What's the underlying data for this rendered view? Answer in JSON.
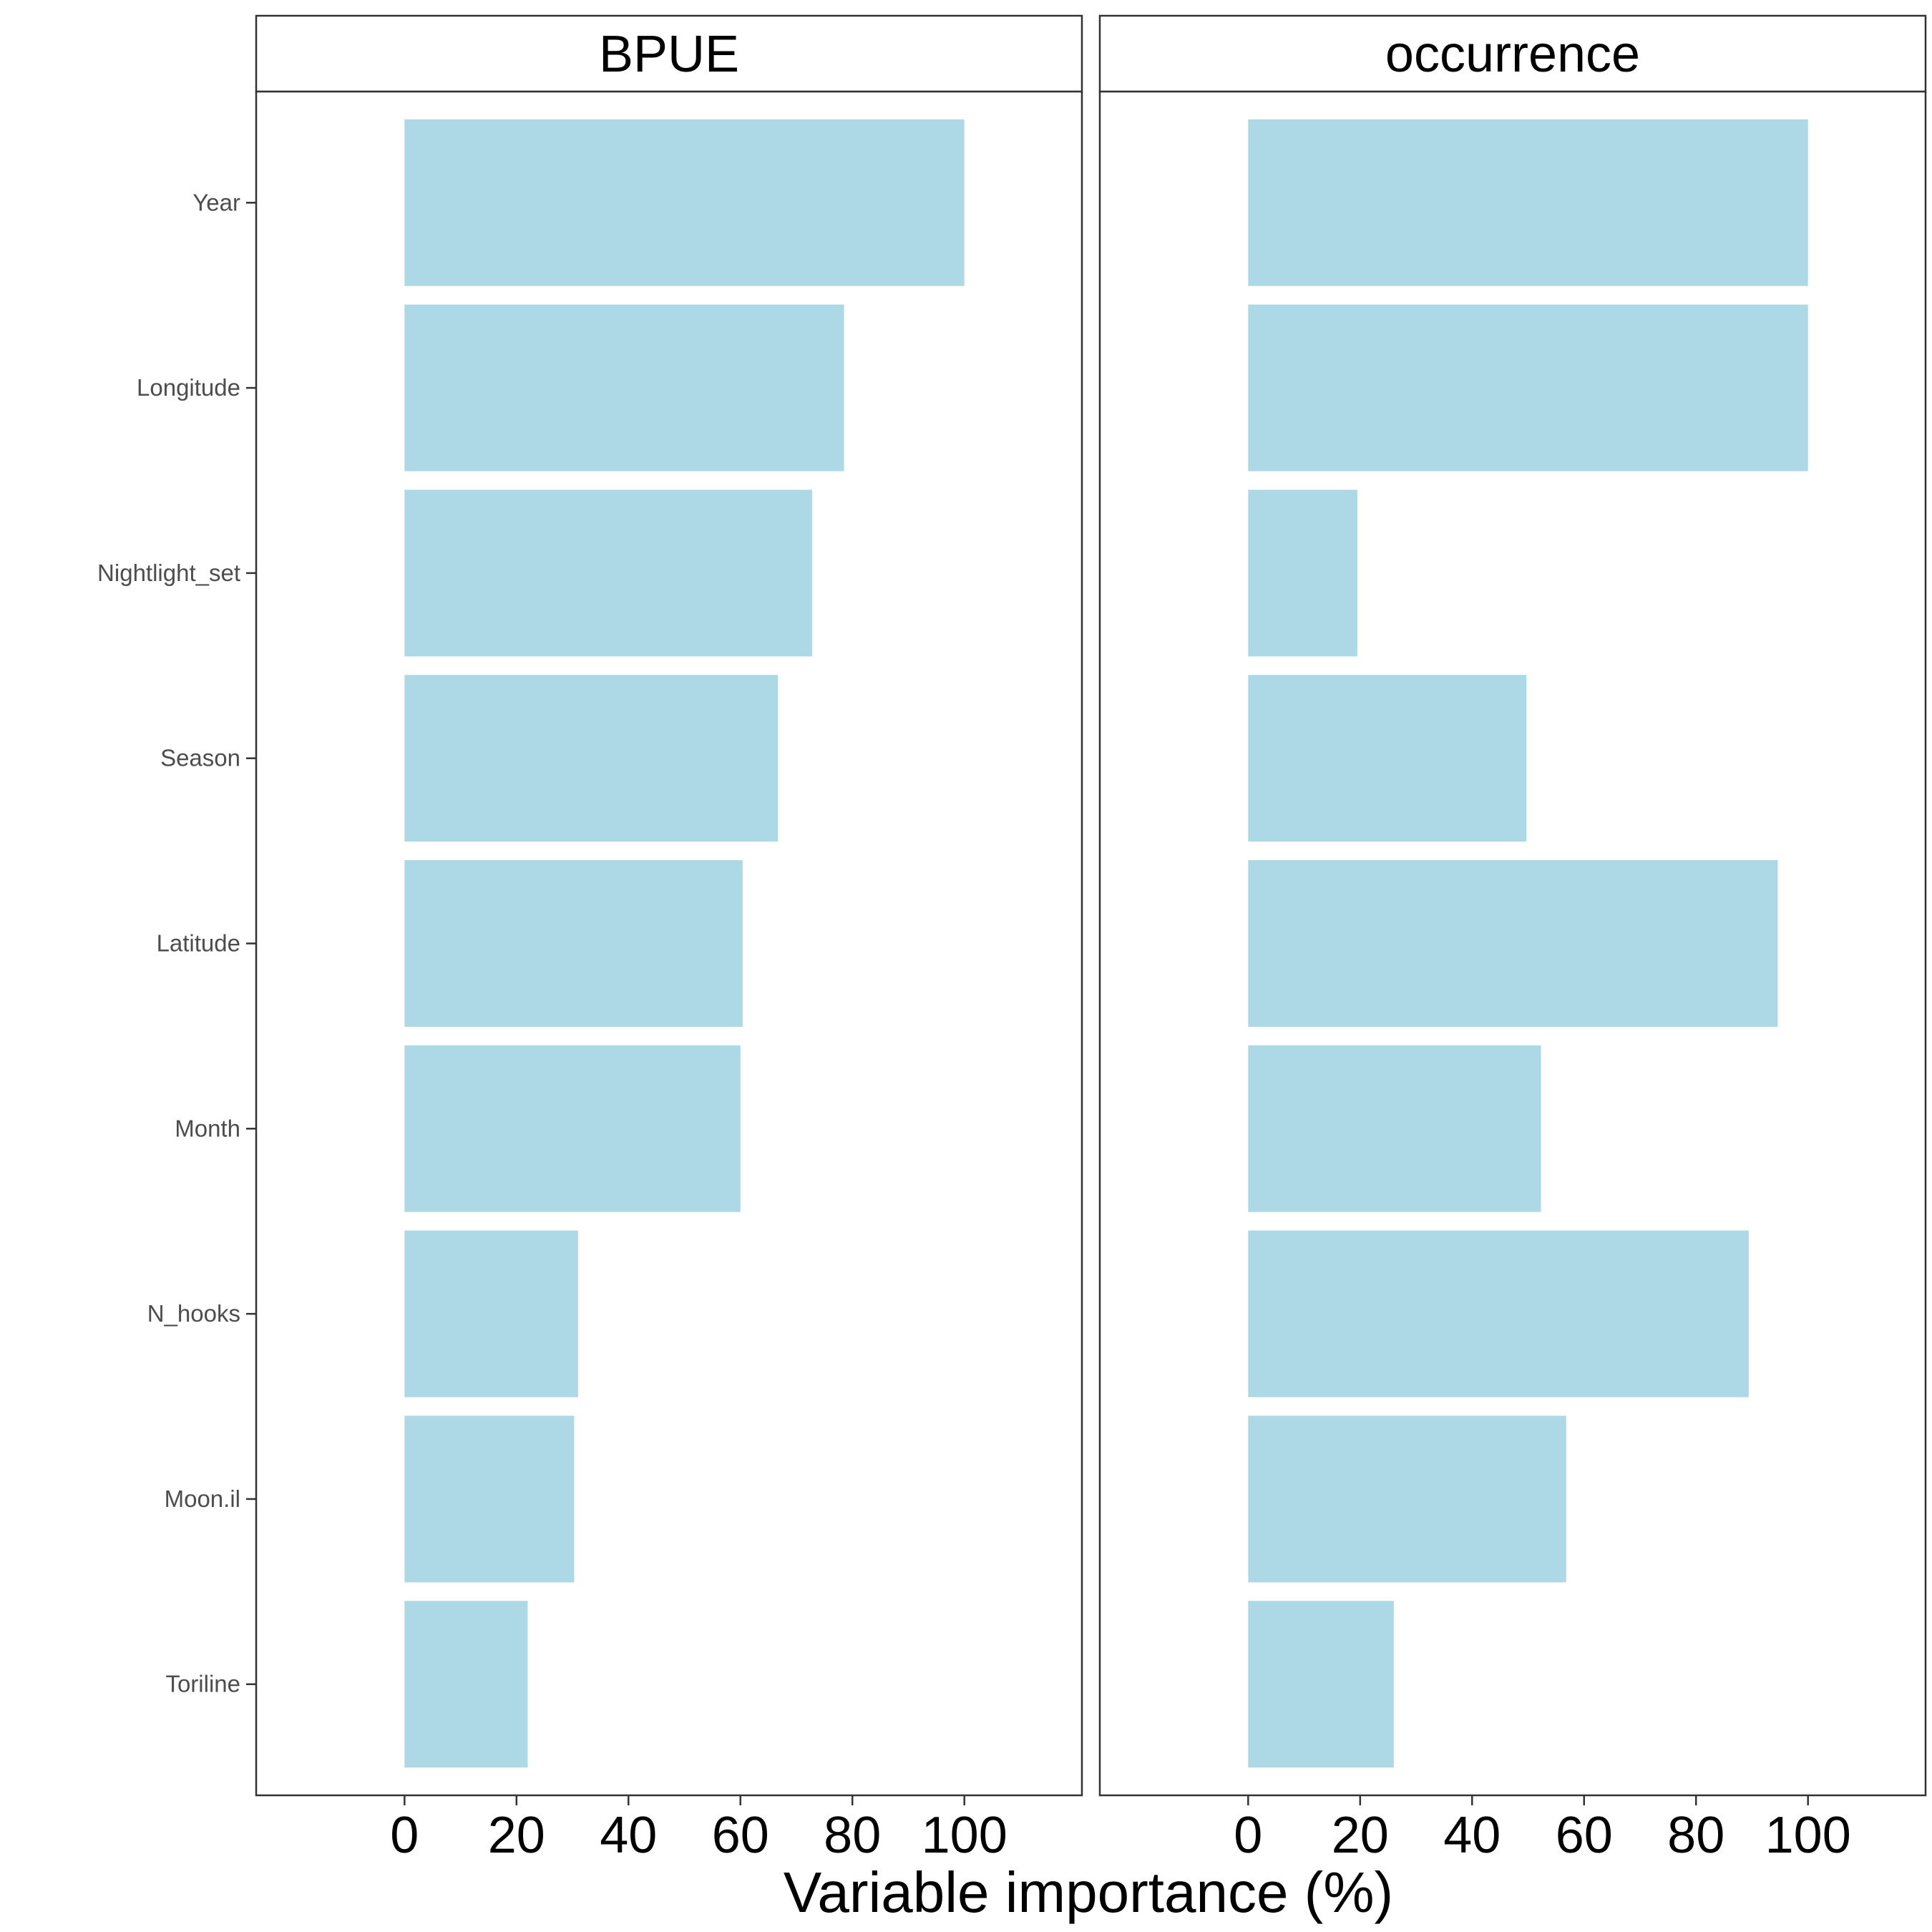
{
  "chart_data": {
    "type": "bar",
    "orientation": "horizontal",
    "xlabel": "Variable importance (%)",
    "ylabel": "",
    "title": "",
    "xlim": [
      -26.5,
      121
    ],
    "xticks": [
      0,
      20,
      40,
      60,
      80,
      100
    ],
    "grid": false,
    "bar_color": "#add8e6",
    "categories": [
      "Year",
      "Longitude",
      "Nightlight_set",
      "Season",
      "Latitude",
      "Month",
      "N_hooks",
      "Moon.il",
      "Toriline"
    ],
    "panels": [
      {
        "name": "BPUE",
        "values": [
          100,
          78.5,
          72.8,
          66.7,
          60.4,
          60.0,
          31.0,
          30.3,
          22.0
        ]
      },
      {
        "name": "occurrence",
        "values": [
          100,
          100,
          19.5,
          49.7,
          94.6,
          52.3,
          89.4,
          56.8,
          26.0
        ]
      }
    ]
  }
}
